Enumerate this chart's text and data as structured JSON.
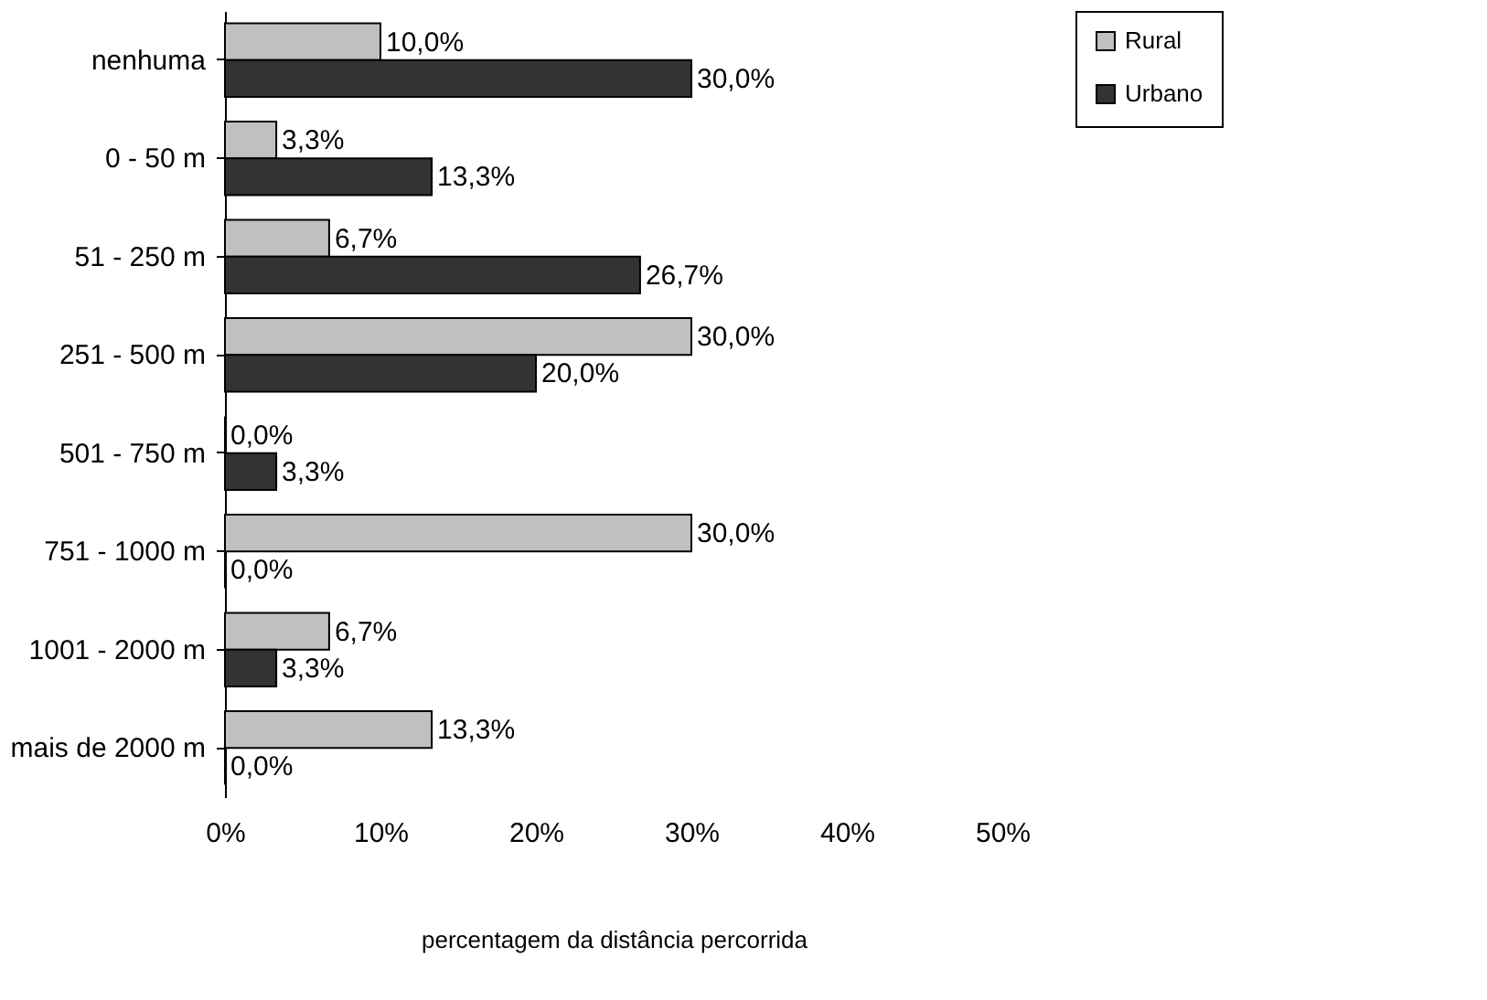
{
  "chart_data": {
    "type": "bar",
    "orientation": "horizontal",
    "xlabel": "percentagem da distância percorrida",
    "categories": [
      "nenhuma",
      "0 - 50 m",
      "51 - 250 m",
      "251 - 500 m",
      "501 - 750 m",
      "751 - 1000 m",
      "1001 - 2000 m",
      "mais de 2000 m"
    ],
    "series": [
      {
        "name": "Rural",
        "color": "#c0c0c0",
        "values": [
          10.0,
          3.3,
          6.7,
          30.0,
          0.0,
          30.0,
          6.7,
          13.3
        ],
        "value_labels": [
          "10,0%",
          "3,3%",
          "6,7%",
          "30,0%",
          "0,0%",
          "30,0%",
          "6,7%",
          "13,3%"
        ]
      },
      {
        "name": "Urbano",
        "color": "#333333",
        "values": [
          30.0,
          13.3,
          26.7,
          20.0,
          3.3,
          0.0,
          3.3,
          0.0
        ],
        "value_labels": [
          "30,0%",
          "13,3%",
          "26,7%",
          "20,0%",
          "3,3%",
          "0,0%",
          "3,3%",
          "0,0%"
        ]
      }
    ],
    "xlim": [
      0,
      50
    ],
    "xticks": [
      {
        "value": 0,
        "label": "0%"
      },
      {
        "value": 10,
        "label": "10%"
      },
      {
        "value": 20,
        "label": "20%"
      },
      {
        "value": 30,
        "label": "30%"
      },
      {
        "value": 40,
        "label": "40%"
      },
      {
        "value": 50,
        "label": "50%"
      }
    ],
    "grid": false,
    "legend": "top right"
  }
}
